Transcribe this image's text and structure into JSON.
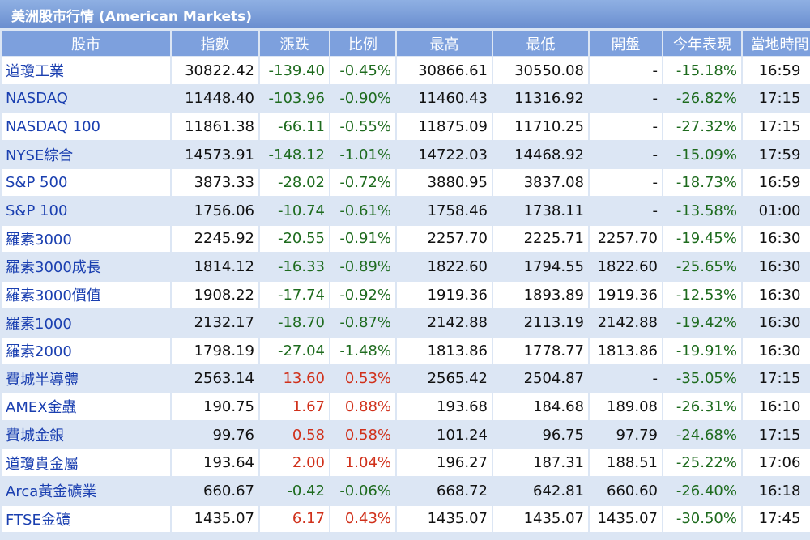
{
  "title": "美洲股市行情 (American Markets)",
  "headers": [
    "股市",
    "指數",
    "漲跌",
    "比例",
    "最高",
    "最低",
    "開盤",
    "今年表現",
    "當地時間"
  ],
  "rows": [
    {
      "name": "道瓊工業",
      "index": "30822.42",
      "change": "-139.40",
      "pct": "-0.45%",
      "high": "30866.61",
      "low": "30550.08",
      "open": "-",
      "ytd": "-15.18%",
      "time": "16:59",
      "dir": "neg"
    },
    {
      "name": "NASDAQ",
      "index": "11448.40",
      "change": "-103.96",
      "pct": "-0.90%",
      "high": "11460.43",
      "low": "11316.92",
      "open": "-",
      "ytd": "-26.82%",
      "time": "17:15",
      "dir": "neg"
    },
    {
      "name": "NASDAQ 100",
      "index": "11861.38",
      "change": "-66.11",
      "pct": "-0.55%",
      "high": "11875.09",
      "low": "11710.25",
      "open": "-",
      "ytd": "-27.32%",
      "time": "17:15",
      "dir": "neg"
    },
    {
      "name": "NYSE綜合",
      "index": "14573.91",
      "change": "-148.12",
      "pct": "-1.01%",
      "high": "14722.03",
      "low": "14468.92",
      "open": "-",
      "ytd": "-15.09%",
      "time": "17:59",
      "dir": "neg"
    },
    {
      "name": "S&P 500",
      "index": "3873.33",
      "change": "-28.02",
      "pct": "-0.72%",
      "high": "3880.95",
      "low": "3837.08",
      "open": "-",
      "ytd": "-18.73%",
      "time": "16:59",
      "dir": "neg"
    },
    {
      "name": "S&P 100",
      "index": "1756.06",
      "change": "-10.74",
      "pct": "-0.61%",
      "high": "1758.46",
      "low": "1738.11",
      "open": "-",
      "ytd": "-13.58%",
      "time": "01:00",
      "dir": "neg"
    },
    {
      "name": "羅素3000",
      "index": "2245.92",
      "change": "-20.55",
      "pct": "-0.91%",
      "high": "2257.70",
      "low": "2225.71",
      "open": "2257.70",
      "ytd": "-19.45%",
      "time": "16:30",
      "dir": "neg"
    },
    {
      "name": "羅素3000成長",
      "index": "1814.12",
      "change": "-16.33",
      "pct": "-0.89%",
      "high": "1822.60",
      "low": "1794.55",
      "open": "1822.60",
      "ytd": "-25.65%",
      "time": "16:30",
      "dir": "neg"
    },
    {
      "name": "羅素3000價值",
      "index": "1908.22",
      "change": "-17.74",
      "pct": "-0.92%",
      "high": "1919.36",
      "low": "1893.89",
      "open": "1919.36",
      "ytd": "-12.53%",
      "time": "16:30",
      "dir": "neg"
    },
    {
      "name": "羅素1000",
      "index": "2132.17",
      "change": "-18.70",
      "pct": "-0.87%",
      "high": "2142.88",
      "low": "2113.19",
      "open": "2142.88",
      "ytd": "-19.42%",
      "time": "16:30",
      "dir": "neg"
    },
    {
      "name": "羅素2000",
      "index": "1798.19",
      "change": "-27.04",
      "pct": "-1.48%",
      "high": "1813.86",
      "low": "1778.77",
      "open": "1813.86",
      "ytd": "-19.91%",
      "time": "16:30",
      "dir": "neg"
    },
    {
      "name": "費城半導體",
      "index": "2563.14",
      "change": "13.60",
      "pct": "0.53%",
      "high": "2565.42",
      "low": "2504.87",
      "open": "-",
      "ytd": "-35.05%",
      "time": "17:15",
      "dir": "pos"
    },
    {
      "name": "AMEX金蟲",
      "index": "190.75",
      "change": "1.67",
      "pct": "0.88%",
      "high": "193.68",
      "low": "184.68",
      "open": "189.08",
      "ytd": "-26.31%",
      "time": "16:10",
      "dir": "pos"
    },
    {
      "name": "費城金銀",
      "index": "99.76",
      "change": "0.58",
      "pct": "0.58%",
      "high": "101.24",
      "low": "96.75",
      "open": "97.79",
      "ytd": "-24.68%",
      "time": "17:15",
      "dir": "pos"
    },
    {
      "name": "道瓊貴金屬",
      "index": "193.64",
      "change": "2.00",
      "pct": "1.04%",
      "high": "196.27",
      "low": "187.31",
      "open": "188.51",
      "ytd": "-25.22%",
      "time": "17:06",
      "dir": "pos"
    },
    {
      "name": "Arca黃金礦業",
      "index": "660.67",
      "change": "-0.42",
      "pct": "-0.06%",
      "high": "668.72",
      "low": "642.81",
      "open": "660.60",
      "ytd": "-26.40%",
      "time": "16:18",
      "dir": "neg"
    },
    {
      "name": "FTSE金礦",
      "index": "1435.07",
      "change": "6.17",
      "pct": "0.43%",
      "high": "1435.07",
      "low": "1435.07",
      "open": "1435.07",
      "ytd": "-30.50%",
      "time": "17:45",
      "dir": "pos"
    }
  ],
  "colors": {
    "header_bg": "#7da0dd",
    "alt_row": "#dce6f4",
    "name_link": "#1a3fb0",
    "down": "#1e6b1e",
    "up": "#d0301a"
  }
}
